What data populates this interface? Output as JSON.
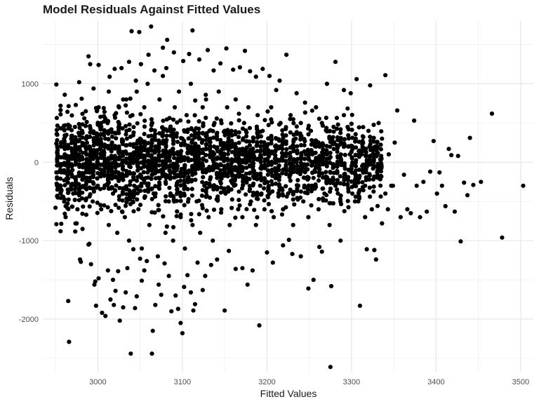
{
  "chart_data": {
    "type": "scatter",
    "title": "Model Residuals Against Fitted Values",
    "xlabel": "Fitted Values",
    "ylabel": "Residuals",
    "xlim": [
      2935,
      3515
    ],
    "ylim": [
      -2680,
      1800
    ],
    "x_ticks": [
      3000,
      3100,
      3200,
      3300,
      3400,
      3500
    ],
    "y_ticks": [
      -2000,
      -1000,
      0,
      1000
    ],
    "grid": true,
    "point_color": "#000000",
    "points": [
      [
        2951,
        991
      ],
      [
        2951,
        -790
      ],
      [
        2950,
        -580
      ],
      [
        2951,
        240
      ],
      [
        2951,
        -130
      ],
      [
        2956,
        720
      ],
      [
        2961,
        860
      ],
      [
        2959,
        -440
      ],
      [
        2965,
        -1770
      ],
      [
        2966,
        -2290
      ],
      [
        2962,
        -560
      ],
      [
        2963,
        350
      ],
      [
        2963,
        -210
      ],
      [
        2970,
        -100
      ],
      [
        2973,
        450
      ],
      [
        2975,
        -780
      ],
      [
        2978,
        1020
      ],
      [
        2979,
        -1240
      ],
      [
        2980,
        -1270
      ],
      [
        2980,
        -320
      ],
      [
        2981,
        810
      ],
      [
        2985,
        200
      ],
      [
        2989,
        1350
      ],
      [
        2990,
        -1040
      ],
      [
        2991,
        1250
      ],
      [
        2992,
        -1300
      ],
      [
        2995,
        940
      ],
      [
        2996,
        -1560
      ],
      [
        2997,
        -1520
      ],
      [
        2998,
        -1830
      ],
      [
        3001,
        1240
      ],
      [
        3001,
        -1480
      ],
      [
        3005,
        -1920
      ],
      [
        3007,
        690
      ],
      [
        3009,
        -1960
      ],
      [
        3012,
        -1380
      ],
      [
        3014,
        1090
      ],
      [
        3015,
        -1750
      ],
      [
        3018,
        -1500
      ],
      [
        3019,
        -1820
      ],
      [
        3020,
        1190
      ],
      [
        3021,
        -1640
      ],
      [
        3024,
        -1390
      ],
      [
        3026,
        -2020
      ],
      [
        3028,
        1200
      ],
      [
        3030,
        -1850
      ],
      [
        3033,
        -1660
      ],
      [
        3035,
        -1350
      ],
      [
        3037,
        1280
      ],
      [
        3039,
        -2440
      ],
      [
        3040,
        1670
      ],
      [
        3042,
        -1110
      ],
      [
        3044,
        -1860
      ],
      [
        3045,
        1040
      ],
      [
        3046,
        -1710
      ],
      [
        3049,
        1660
      ],
      [
        3050,
        -1230
      ],
      [
        3051,
        1250
      ],
      [
        3052,
        -1510
      ],
      [
        3055,
        -1380
      ],
      [
        3058,
        -1260
      ],
      [
        3060,
        1370
      ],
      [
        3063,
        1730
      ],
      [
        3064,
        -2440
      ],
      [
        3065,
        -2150
      ],
      [
        3067,
        1170
      ],
      [
        3068,
        -1820
      ],
      [
        3072,
        -1560
      ],
      [
        3075,
        -1690
      ],
      [
        3077,
        1460
      ],
      [
        3079,
        -1290
      ],
      [
        3081,
        1200
      ],
      [
        3082,
        1560
      ],
      [
        3084,
        -1450
      ],
      [
        3087,
        -1900
      ],
      [
        3090,
        1400
      ],
      [
        3092,
        -1700
      ],
      [
        3095,
        -1870
      ],
      [
        3098,
        -2050
      ],
      [
        3100,
        -2180
      ],
      [
        3101,
        1290
      ],
      [
        3102,
        -1590
      ],
      [
        3106,
        -1440
      ],
      [
        3108,
        1380
      ],
      [
        3110,
        -1660
      ],
      [
        3112,
        1680
      ],
      [
        3113,
        -1890
      ],
      [
        3115,
        -1810
      ],
      [
        3118,
        -1280
      ],
      [
        3120,
        1310
      ],
      [
        3124,
        -1630
      ],
      [
        3127,
        -1450
      ],
      [
        3130,
        1430
      ],
      [
        3134,
        -1310
      ],
      [
        3137,
        1170
      ],
      [
        3141,
        -1240
      ],
      [
        3145,
        1260
      ],
      [
        3150,
        -1890
      ],
      [
        3152,
        1450
      ],
      [
        3155,
        -1130
      ],
      [
        3160,
        1180
      ],
      [
        3163,
        -1360
      ],
      [
        3168,
        1210
      ],
      [
        3171,
        -1350
      ],
      [
        3174,
        1420
      ],
      [
        3177,
        -1560
      ],
      [
        3180,
        1160
      ],
      [
        3183,
        -1380
      ],
      [
        3187,
        1090
      ],
      [
        3191,
        -2080
      ],
      [
        3195,
        1190
      ],
      [
        3200,
        -1150
      ],
      [
        3203,
        1100
      ],
      [
        3207,
        -1280
      ],
      [
        3211,
        920
      ],
      [
        3215,
        1040
      ],
      [
        3219,
        -1060
      ],
      [
        3223,
        1370
      ],
      [
        3226,
        -990
      ],
      [
        3230,
        -1170
      ],
      [
        3235,
        880
      ],
      [
        3240,
        -1200
      ],
      [
        3245,
        760
      ],
      [
        3249,
        -1610
      ],
      [
        3255,
        -1500
      ],
      [
        3258,
        700
      ],
      [
        3262,
        -1080
      ],
      [
        3265,
        -1140
      ],
      [
        3271,
        1000
      ],
      [
        3275,
        -2610
      ],
      [
        3276,
        -1580
      ],
      [
        3281,
        1280
      ],
      [
        3284,
        480
      ],
      [
        3287,
        -1000
      ],
      [
        3291,
        920
      ],
      [
        3296,
        200
      ],
      [
        3299,
        880
      ],
      [
        3303,
        -300
      ],
      [
        3306,
        1060
      ],
      [
        3310,
        -1830
      ],
      [
        3313,
        270
      ],
      [
        3316,
        -700
      ],
      [
        3318,
        -1110
      ],
      [
        3322,
        980
      ],
      [
        3327,
        -1120
      ],
      [
        3329,
        -1240
      ],
      [
        3332,
        500
      ],
      [
        3336,
        -780
      ],
      [
        3340,
        1110
      ],
      [
        3343,
        -600
      ],
      [
        3347,
        -300
      ],
      [
        3351,
        250
      ],
      [
        3354,
        660
      ],
      [
        3358,
        -700
      ],
      [
        3362,
        -160
      ],
      [
        3366,
        -600
      ],
      [
        3370,
        -650
      ],
      [
        3374,
        530
      ],
      [
        3377,
        -300
      ],
      [
        3381,
        -700
      ],
      [
        3385,
        -250
      ],
      [
        3389,
        -630
      ],
      [
        3393,
        -120
      ],
      [
        3397,
        270
      ],
      [
        3401,
        -400
      ],
      [
        3404,
        -130
      ],
      [
        3407,
        -300
      ],
      [
        3411,
        -560
      ],
      [
        3415,
        170
      ],
      [
        3418,
        90
      ],
      [
        3422,
        -630
      ],
      [
        3426,
        80
      ],
      [
        3429,
        -1010
      ],
      [
        3433,
        -260
      ],
      [
        3437,
        -420
      ],
      [
        3440,
        310
      ],
      [
        3444,
        -290
      ],
      [
        3453,
        -250
      ],
      [
        3466,
        620
      ],
      [
        3478,
        -960
      ],
      [
        3503,
        -300
      ],
      [
        3000,
        -300
      ],
      [
        3000,
        250
      ],
      [
        3001,
        700
      ],
      [
        3004,
        -600
      ],
      [
        3004,
        500
      ],
      [
        3007,
        -100
      ],
      [
        3009,
        300
      ],
      [
        3013,
        -800
      ],
      [
        3013,
        900
      ],
      [
        3016,
        50
      ],
      [
        3018,
        -400
      ],
      [
        3020,
        600
      ],
      [
        3023,
        -900
      ],
      [
        3025,
        200
      ],
      [
        3027,
        -200
      ],
      [
        3030,
        800
      ],
      [
        3032,
        -700
      ],
      [
        3034,
        400
      ],
      [
        3037,
        -1000
      ],
      [
        3039,
        100
      ],
      [
        3041,
        600
      ],
      [
        3043,
        -300
      ],
      [
        3046,
        900
      ],
      [
        3048,
        -600
      ],
      [
        3050,
        300
      ],
      [
        3052,
        -1100
      ],
      [
        3055,
        700
      ],
      [
        3057,
        -200
      ],
      [
        3059,
        1000
      ],
      [
        3061,
        -800
      ],
      [
        3064,
        500
      ],
      [
        3066,
        -400
      ],
      [
        3068,
        200
      ],
      [
        3071,
        -1200
      ],
      [
        3073,
        800
      ],
      [
        3075,
        -100
      ],
      [
        3077,
        1100
      ],
      [
        3080,
        -900
      ],
      [
        3082,
        400
      ],
      [
        3084,
        -500
      ],
      [
        3086,
        100
      ],
      [
        3089,
        -1000
      ],
      [
        3091,
        700
      ],
      [
        3093,
        -300
      ],
      [
        3096,
        900
      ],
      [
        3098,
        -700
      ],
      [
        3100,
        300
      ],
      [
        3103,
        -1100
      ],
      [
        3105,
        600
      ],
      [
        3107,
        -200
      ],
      [
        3110,
        1000
      ],
      [
        3112,
        -800
      ],
      [
        3114,
        400
      ],
      [
        3117,
        -500
      ],
      [
        3119,
        200
      ],
      [
        3121,
        -900
      ],
      [
        3124,
        700
      ],
      [
        3126,
        -300
      ],
      [
        3128,
        800
      ],
      [
        3131,
        -700
      ],
      [
        3133,
        300
      ],
      [
        3136,
        -1000
      ],
      [
        3138,
        500
      ],
      [
        3141,
        -200
      ],
      [
        3143,
        900
      ],
      [
        3146,
        -600
      ],
      [
        3148,
        200
      ],
      [
        3151,
        -400
      ],
      [
        3153,
        700
      ],
      [
        3156,
        -800
      ],
      [
        3158,
        400
      ],
      [
        3161,
        -300
      ],
      [
        3163,
        800
      ],
      [
        3166,
        -600
      ],
      [
        3168,
        100
      ],
      [
        3171,
        -700
      ],
      [
        3173,
        500
      ],
      [
        3176,
        -200
      ],
      [
        3178,
        700
      ],
      [
        3181,
        -500
      ],
      [
        3184,
        300
      ],
      [
        3187,
        -800
      ],
      [
        3189,
        600
      ],
      [
        3192,
        -300
      ],
      [
        3195,
        400
      ],
      [
        3197,
        -600
      ],
      [
        3200,
        200
      ],
      [
        3203,
        -400
      ],
      [
        3205,
        700
      ],
      [
        3208,
        -700
      ],
      [
        3211,
        300
      ],
      [
        3214,
        -200
      ],
      [
        3216,
        500
      ],
      [
        3219,
        -600
      ],
      [
        3222,
        100
      ],
      [
        3225,
        -400
      ],
      [
        3228,
        600
      ],
      [
        3231,
        -800
      ],
      [
        3234,
        300
      ],
      [
        3237,
        -300
      ],
      [
        3240,
        500
      ],
      [
        3243,
        -500
      ],
      [
        3246,
        100
      ],
      [
        3249,
        -700
      ],
      [
        3252,
        400
      ],
      [
        3255,
        -200
      ],
      [
        3258,
        200
      ],
      [
        3261,
        -600
      ],
      [
        3265,
        500
      ],
      [
        3268,
        -400
      ],
      [
        3271,
        100
      ],
      [
        3274,
        -800
      ],
      [
        3277,
        300
      ],
      [
        3281,
        -300
      ],
      [
        3284,
        200
      ],
      [
        3287,
        -500
      ],
      [
        3291,
        600
      ],
      [
        3294,
        -200
      ],
      [
        3298,
        100
      ],
      [
        3301,
        -400
      ],
      [
        3305,
        300
      ],
      [
        3308,
        -500
      ],
      [
        3312,
        100
      ],
      [
        3316,
        -300
      ],
      [
        3320,
        400
      ],
      [
        3324,
        -600
      ],
      [
        3328,
        200
      ],
      [
        3332,
        -200
      ],
      [
        3336,
        300
      ],
      [
        3340,
        -400
      ],
      [
        3344,
        100
      ],
      [
        3349,
        -300
      ],
      [
        2952,
        350
      ],
      [
        2953,
        -330
      ],
      [
        2956,
        610
      ],
      [
        2956,
        -880
      ],
      [
        2961,
        100
      ],
      [
        2962,
        -700
      ],
      [
        2967,
        460
      ],
      [
        2969,
        -50
      ],
      [
        2971,
        -400
      ],
      [
        2974,
        730
      ],
      [
        2976,
        -600
      ],
      [
        2979,
        150
      ],
      [
        2982,
        -850
      ],
      [
        2984,
        560
      ],
      [
        2986,
        -200
      ],
      [
        2989,
        -1050
      ],
      [
        2991,
        380
      ],
      [
        2994,
        -500
      ],
      [
        2996,
        110
      ],
      [
        2998,
        690
      ],
      [
        2968,
        -340
      ],
      [
        2972,
        250
      ],
      [
        2983,
        -150
      ],
      [
        2987,
        330
      ]
    ]
  }
}
